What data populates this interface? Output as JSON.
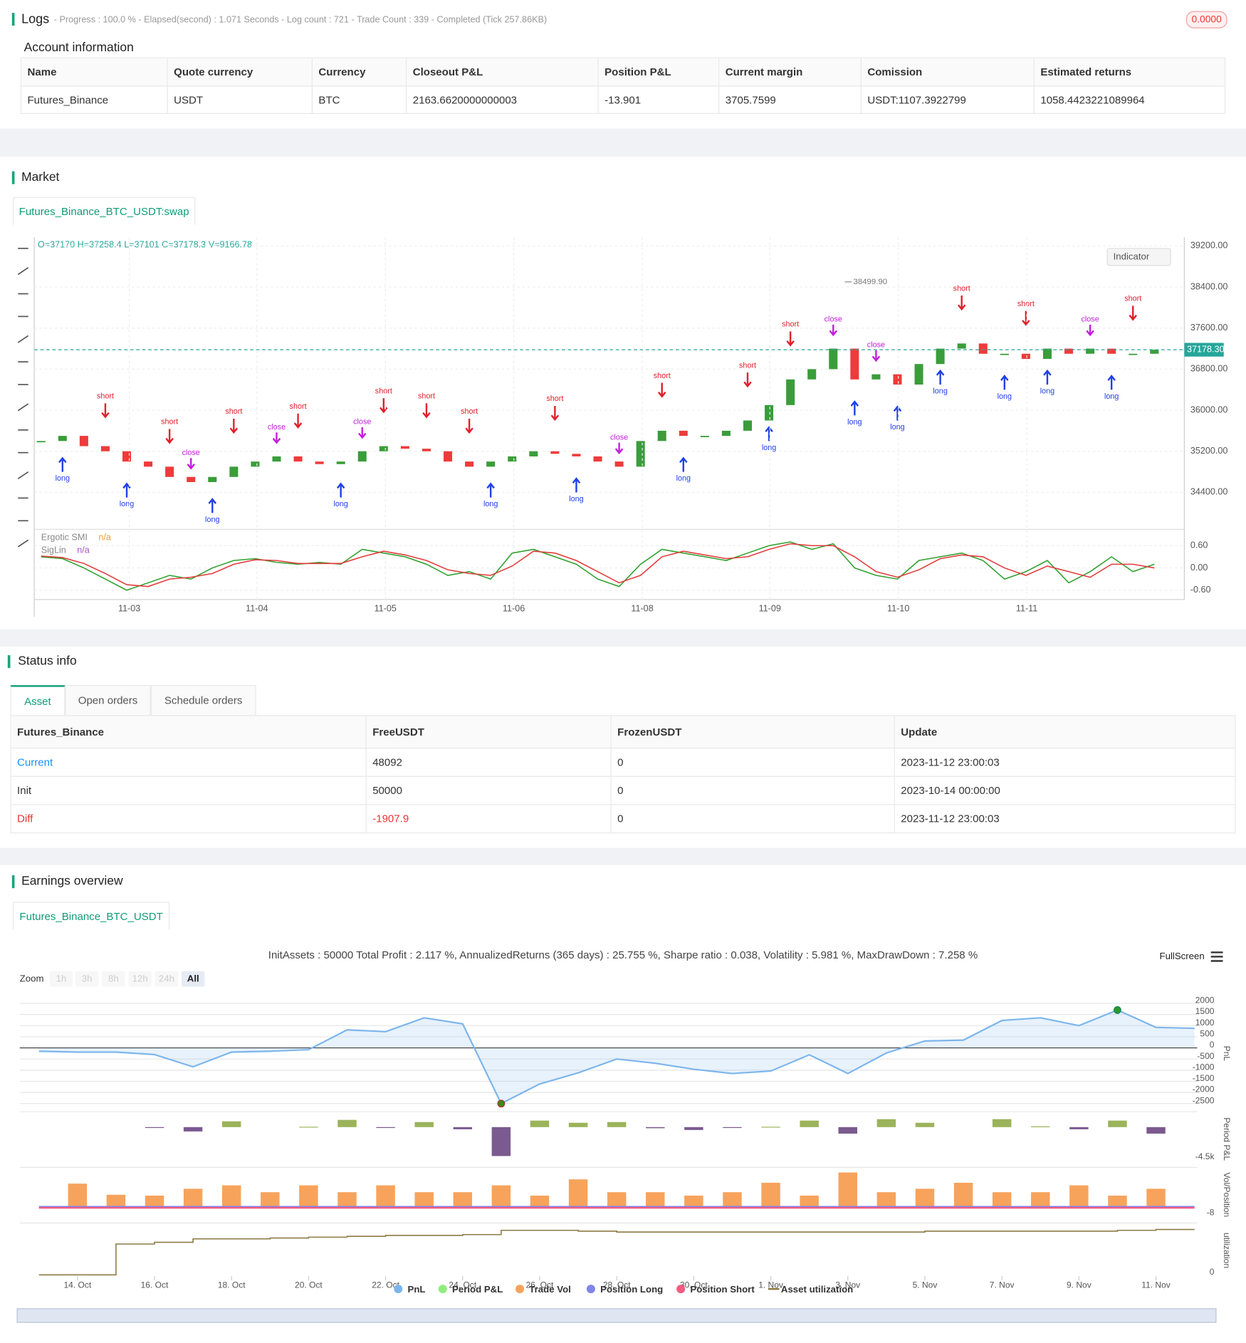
{
  "logs": {
    "title": "Logs",
    "progress": "- Progress : 100.0 % - Elapsed(second) : 1.071 Seconds - Log count : 721 - Trade Count : 339 - Completed (Tick 257.86KB)",
    "badge": "0.0000"
  },
  "account": {
    "title": "Account information",
    "columns": [
      "Name",
      "Quote currency",
      "Currency",
      "Closeout P&L",
      "Position P&L",
      "Current margin",
      "Comission",
      "Estimated returns"
    ],
    "rows": [
      [
        "Futures_Binance",
        "USDT",
        "BTC",
        "2163.6620000000003",
        "-13.901",
        "3705.7599",
        "USDT:1107.3922799",
        "1058.4423221089964"
      ]
    ]
  },
  "market": {
    "title": "Market",
    "tab": "Futures_Binance_BTC_USDT:swap",
    "ohlc": "O=37170 H=37258.4 L=37101 C=37178.3 V=9166.78",
    "indicator": "Indicator"
  },
  "status": {
    "title": "Status info",
    "tabs": [
      "Asset",
      "Open orders",
      "Schedule orders"
    ],
    "columns": [
      "Futures_Binance",
      "FreeUSDT",
      "FrozenUSDT",
      "Update"
    ],
    "rows": [
      [
        "Current",
        "48092",
        "0",
        "2023-11-12 23:00:03"
      ],
      [
        "Init",
        "50000",
        "0",
        "2023-10-14 00:00:00"
      ],
      [
        "Diff",
        "-1907.9",
        "0",
        "2023-11-12 23:00:03"
      ]
    ]
  },
  "earnings": {
    "title": "Earnings overview",
    "tab": "Futures_Binance_BTC_USDT",
    "summary": "InitAssets : 50000 Total Profit : 2.117 %, AnnualizedReturns (365 days) : 25.755 %, Sharpe ratio : 0.038, Volatility : 5.981 %, MaxDrawDown : 7.258 %",
    "fullscreen": "FullScreen",
    "zoom": "Zoom",
    "zoom_buttons": [
      "1h",
      "3h",
      "8h",
      "12h",
      "24h",
      "All"
    ]
  },
  "chart_data": [
    {
      "type": "candlestick",
      "up_color": "#3a9d3a",
      "down_color": "#ee3b3b",
      "grid": true,
      "x": [
        0,
        1,
        2,
        3,
        4,
        5,
        6,
        7,
        8,
        9,
        10,
        11,
        12,
        13,
        14,
        15,
        16,
        17,
        18,
        19,
        20,
        21,
        22,
        23,
        24,
        25,
        26,
        27,
        28,
        29,
        30,
        31,
        32,
        33,
        34,
        35,
        36,
        37,
        38,
        39,
        40,
        41,
        42,
        43,
        44,
        45,
        46,
        47,
        48,
        49,
        50,
        51,
        52
      ],
      "close": [
        35400,
        35500,
        35300,
        35200,
        35000,
        34900,
        34700,
        34600,
        34700,
        34900,
        35000,
        35100,
        35000,
        34950,
        35000,
        35200,
        35300,
        35250,
        35200,
        35000,
        34900,
        35000,
        35100,
        35200,
        35150,
        35100,
        35000,
        34900,
        35400,
        35600,
        35500,
        35500,
        35600,
        35800,
        36100,
        36600,
        36800,
        37200,
        36600,
        36700,
        36500,
        36900,
        37200,
        37300,
        37100,
        37100,
        37000,
        37200,
        37100,
        37200,
        37100,
        37100,
        37178.3
      ],
      "last_label": "37178.30",
      "last_color": "#26a69a",
      "xlim": [
        -0.32,
        53.4
      ],
      "ylim": [
        33680,
        39370
      ],
      "yticks": [
        {
          "value": 39200,
          "label": "39200.00"
        },
        {
          "value": 38400,
          "label": "38400.00"
        },
        {
          "value": 37600,
          "label": "37600.00"
        },
        {
          "value": 36800,
          "label": "36800.00"
        },
        {
          "value": 36000,
          "label": "36000.00"
        },
        {
          "value": 35200,
          "label": "35200.00"
        },
        {
          "value": 34400,
          "label": "34400.00"
        }
      ],
      "annotations": [
        {
          "x": 37.7,
          "value": 38499.9,
          "label": "38499.90"
        }
      ],
      "signal_colors": {
        "short": "#e0202a",
        "long": "#2040e8",
        "close": "#c020d8"
      },
      "signals": [
        {
          "x": 1,
          "label": "long"
        },
        {
          "x": 3,
          "label": "short"
        },
        {
          "x": 4,
          "label": "long"
        },
        {
          "x": 6,
          "label": "short"
        },
        {
          "x": 7,
          "label": "close"
        },
        {
          "x": 8,
          "label": "long"
        },
        {
          "x": 9,
          "label": "short"
        },
        {
          "x": 11,
          "label": "close"
        },
        {
          "x": 12,
          "label": "short"
        },
        {
          "x": 14,
          "label": "long"
        },
        {
          "x": 15,
          "label": "close"
        },
        {
          "x": 16,
          "label": "short"
        },
        {
          "x": 18,
          "label": "short"
        },
        {
          "x": 20,
          "label": "short"
        },
        {
          "x": 21,
          "label": "long"
        },
        {
          "x": 24,
          "label": "short"
        },
        {
          "x": 25,
          "label": "long"
        },
        {
          "x": 27,
          "label": "close"
        },
        {
          "x": 29,
          "label": "short"
        },
        {
          "x": 30,
          "label": "long"
        },
        {
          "x": 33,
          "label": "short"
        },
        {
          "x": 34,
          "label": "long"
        },
        {
          "x": 35,
          "label": "short"
        },
        {
          "x": 37,
          "label": "close"
        },
        {
          "x": 38,
          "label": "long"
        },
        {
          "x": 39,
          "label": "close"
        },
        {
          "x": 40,
          "label": "long"
        },
        {
          "x": 42,
          "label": "long"
        },
        {
          "x": 43,
          "label": "short"
        },
        {
          "x": 45,
          "label": "long"
        },
        {
          "x": 46,
          "label": "short"
        },
        {
          "x": 47,
          "label": "long"
        },
        {
          "x": 49,
          "label": "close"
        },
        {
          "x": 50,
          "label": "long"
        },
        {
          "x": 51,
          "label": "short"
        }
      ]
    },
    {
      "type": "line",
      "grid": true,
      "x": [
        0,
        1,
        2,
        3,
        4,
        5,
        6,
        7,
        8,
        9,
        10,
        11,
        12,
        13,
        14,
        15,
        16,
        17,
        18,
        19,
        20,
        21,
        22,
        23,
        24,
        25,
        26,
        27,
        28,
        29,
        30,
        31,
        32,
        33,
        34,
        35,
        36,
        37,
        38,
        39,
        40,
        41,
        42,
        43,
        44,
        45,
        46,
        47,
        48,
        49,
        50,
        51,
        52
      ],
      "xlim": [
        -0.32,
        53.4
      ],
      "ylim": [
        -0.85,
        1.04
      ],
      "yticks": [
        {
          "value": 0.6,
          "label": "0.60"
        },
        {
          "value": 0,
          "label": "0.00"
        },
        {
          "value": -0.6,
          "label": "-0.60"
        }
      ],
      "xticks": [
        {
          "value": 4.12,
          "label": "11-03"
        },
        {
          "value": 10.08,
          "label": "11-04"
        },
        {
          "value": 16.08,
          "label": "11-05"
        },
        {
          "value": 22.08,
          "label": "11-06"
        },
        {
          "value": 28.08,
          "label": "11-08"
        },
        {
          "value": 34.04,
          "label": "11-09"
        },
        {
          "value": 40.04,
          "label": "11-10"
        },
        {
          "value": 46.04,
          "label": "11-11"
        }
      ],
      "series": [
        {
          "name": "Ergotic SMI",
          "current": "n/a",
          "color": "#2fa02f",
          "values": [
            0.3,
            0.25,
            0.0,
            -0.3,
            -0.6,
            -0.4,
            -0.2,
            -0.3,
            0.0,
            0.2,
            0.25,
            0.15,
            0.1,
            0.15,
            0.1,
            0.5,
            0.4,
            0.3,
            0.1,
            -0.2,
            -0.1,
            -0.3,
            0.4,
            0.5,
            0.3,
            0.1,
            -0.3,
            -0.5,
            0.1,
            0.5,
            0.4,
            0.3,
            0.2,
            0.4,
            0.6,
            0.7,
            0.5,
            0.65,
            0.0,
            -0.2,
            -0.3,
            0.2,
            0.3,
            0.4,
            0.2,
            -0.3,
            -0.1,
            0.2,
            -0.4,
            -0.1,
            0.3,
            -0.1,
            0.1
          ]
        },
        {
          "name": "SigLin",
          "current": "n/a",
          "color": "#e23c3c",
          "values": [
            0.32,
            0.28,
            0.12,
            -0.15,
            -0.45,
            -0.5,
            -0.3,
            -0.25,
            -0.15,
            0.1,
            0.22,
            0.2,
            0.12,
            0.12,
            0.12,
            0.3,
            0.45,
            0.35,
            0.2,
            -0.05,
            -0.15,
            -0.2,
            0.05,
            0.45,
            0.4,
            0.2,
            -0.1,
            -0.4,
            -0.2,
            0.3,
            0.45,
            0.35,
            0.25,
            0.3,
            0.5,
            0.65,
            0.6,
            0.6,
            0.3,
            -0.1,
            -0.25,
            -0.05,
            0.25,
            0.35,
            0.3,
            0.0,
            -0.2,
            0.05,
            -0.1,
            -0.25,
            0.1,
            0.1,
            0.0
          ]
        }
      ]
    },
    {
      "type": "area",
      "grid": true,
      "zero_line": true,
      "ylabel": "PnL",
      "x": [
        13,
        14,
        15,
        16,
        17,
        18,
        19,
        20,
        21,
        22,
        23,
        24,
        25,
        26,
        27,
        28,
        29,
        30,
        31,
        32,
        33,
        34,
        35,
        36,
        37,
        38,
        39,
        40,
        41,
        42,
        43
      ],
      "xlim": [
        12.5,
        43.07
      ],
      "ylim": [
        -2750,
        2250
      ],
      "yticks": [
        2000,
        1500,
        1000,
        500,
        0,
        -500,
        -1000,
        -1500,
        -2000,
        -2500
      ],
      "xticks": [
        {
          "value": 14,
          "label": "14. Oct"
        },
        {
          "value": 16,
          "label": "16. Oct"
        },
        {
          "value": 18,
          "label": "18. Oct"
        },
        {
          "value": 20,
          "label": "20. Oct"
        },
        {
          "value": 22,
          "label": "22. Oct"
        },
        {
          "value": 24,
          "label": "24. Oct"
        },
        {
          "value": 26,
          "label": "26. Oct"
        },
        {
          "value": 28,
          "label": "28. Oct"
        },
        {
          "value": 30,
          "label": "30. Oct"
        },
        {
          "value": 32,
          "label": "1. Nov"
        },
        {
          "value": 34,
          "label": "3. Nov"
        },
        {
          "value": 36,
          "label": "5. Nov"
        },
        {
          "value": 38,
          "label": "7. Nov"
        },
        {
          "value": 40,
          "label": "9. Nov"
        },
        {
          "value": 42,
          "label": "11. Nov"
        }
      ],
      "series": [
        {
          "name": "PnL",
          "color": "#7cb5ec",
          "values": [
            -150,
            -190,
            -190,
            -300,
            -850,
            -190,
            -150,
            -80,
            810,
            730,
            1350,
            1080,
            -2500,
            -1620,
            -1120,
            -500,
            -690,
            -960,
            -1150,
            -1040,
            -310,
            -1150,
            -230,
            310,
            350,
            1230,
            1350,
            1000,
            1700,
            920,
            880
          ]
        }
      ]
    },
    {
      "type": "bar",
      "grid": false,
      "ylabel": "Period P&L",
      "bar_colors": {
        "positive": "#9bb35a",
        "negative": "#7b5a8f"
      },
      "x": [
        13,
        14,
        15,
        16,
        17,
        18,
        19,
        20,
        21,
        22,
        23,
        24,
        25,
        26,
        27,
        28,
        29,
        30,
        31,
        32,
        33,
        34,
        35,
        36,
        37,
        38,
        39,
        40,
        41,
        42,
        43
      ],
      "xlim": [
        12.5,
        43.07
      ],
      "ylim": [
        -5210,
        1895
      ],
      "yticks": [
        {
          "value": -4500,
          "label": "-4.5k"
        }
      ],
      "series": [
        {
          "name": "Period P&L",
          "color": "#90ed7d",
          "values": [
            null,
            null,
            null,
            -100,
            -600,
            800,
            null,
            50,
            1000,
            -50,
            700,
            -300,
            -4000,
            900,
            600,
            700,
            -150,
            -400,
            -50,
            50,
            900,
            -900,
            1100,
            600,
            null,
            1100,
            100,
            -300,
            900,
            -900,
            null
          ]
        }
      ]
    },
    {
      "type": "bar",
      "grid": false,
      "ylabel": "Vol/Position",
      "x": [
        13,
        14,
        15,
        16,
        17,
        18,
        19,
        20,
        21,
        22,
        23,
        24,
        25,
        26,
        27,
        28,
        29,
        30,
        31,
        32,
        33,
        34,
        35,
        36,
        37,
        38,
        39,
        40,
        41,
        42,
        43
      ],
      "xlim": [
        12.5,
        43.07
      ],
      "ylim": [
        -12.8,
        35.2
      ],
      "yticks": [
        -8
      ],
      "series": [
        {
          "name": "Trade Vol",
          "color": "#f7a35c",
          "values": [
            null,
            21.6,
            11.2,
            10.4,
            16.8,
            20,
            13.6,
            20,
            13.6,
            20,
            13.6,
            13.6,
            20,
            10.4,
            25.6,
            13.6,
            13.6,
            10.4,
            13.6,
            22.4,
            10.4,
            32,
            13.6,
            16.8,
            22.4,
            13.6,
            13.6,
            20,
            10.4,
            16.8,
            null
          ]
        },
        {
          "name": "Position Long",
          "type": "line",
          "color": "#8085e9",
          "values": [
            0,
            0,
            0,
            0,
            0,
            0,
            0,
            0,
            0,
            0,
            0,
            0,
            0,
            0,
            0,
            0,
            0,
            0,
            0,
            0,
            0,
            0,
            0,
            0,
            0,
            0,
            0,
            0,
            0,
            0,
            0
          ]
        },
        {
          "name": "Position Short",
          "type": "line",
          "color": "#f15c80",
          "values": [
            -1,
            -1,
            -1,
            -1,
            -1,
            -1,
            -1,
            -1,
            -1,
            -1,
            -1,
            -1,
            -1,
            -1,
            -1,
            -1,
            -1,
            -1,
            -1,
            -1,
            -1,
            -1,
            -1,
            -1,
            -1,
            -1,
            -1,
            -1,
            -1,
            -1,
            -1
          ]
        }
      ]
    },
    {
      "type": "step",
      "grid": false,
      "ylabel": "utilization",
      "x": [
        13,
        14,
        15,
        16,
        17,
        18,
        19,
        20,
        21,
        22,
        23,
        24,
        25,
        26,
        27,
        28,
        29,
        30,
        31,
        32,
        33,
        34,
        35,
        36,
        37,
        38,
        39,
        40,
        41,
        42,
        43
      ],
      "xlim": [
        12.5,
        43.07
      ],
      "ylim": [
        -1.5,
        58.5
      ],
      "yticks": [
        0
      ],
      "series": [
        {
          "name": "Asset utilization",
          "color": "#8c7a45",
          "values": [
            0,
            0,
            36,
            38,
            42,
            42,
            43,
            44,
            45,
            46,
            46,
            47,
            52,
            52,
            51,
            50,
            50,
            50,
            50,
            50,
            50,
            50,
            50,
            51,
            51,
            51,
            51,
            51,
            52,
            53,
            53
          ]
        }
      ]
    }
  ]
}
